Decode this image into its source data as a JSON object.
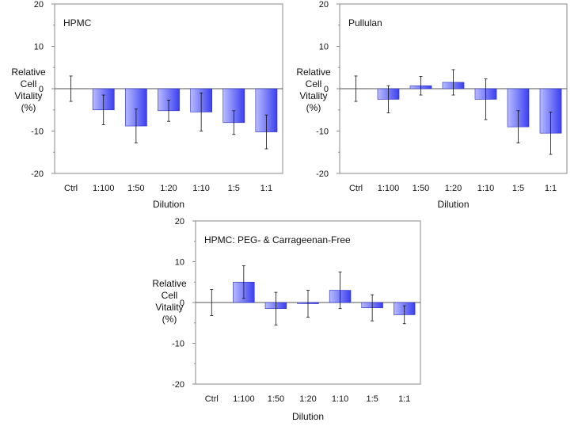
{
  "chart_data": [
    {
      "type": "bar",
      "title": "HPMC",
      "ylabel": [
        "Relative",
        "Cell",
        "Vitality",
        "(%)"
      ],
      "xlabel": "Dilution",
      "categories": [
        "Ctrl",
        "1:100",
        "1:50",
        "1:20",
        "1:10",
        "1:5",
        "1:1"
      ],
      "values": [
        0,
        -5,
        -8.8,
        -5.2,
        -5.5,
        -8,
        -10.2
      ],
      "errors": [
        3,
        3.5,
        4,
        2.5,
        4.5,
        2.8,
        4
      ],
      "yticks": [
        "20",
        "10",
        "0",
        "-10",
        "-20"
      ],
      "ylim": [
        -20,
        20
      ],
      "grid": false
    },
    {
      "type": "bar",
      "title": "Pullulan",
      "ylabel": [
        "Relative",
        "Cell",
        "Vitality",
        "(%)"
      ],
      "xlabel": "Dilution",
      "categories": [
        "Ctrl",
        "1:100",
        "1:50",
        "1:20",
        "1:10",
        "1:5",
        "1:1"
      ],
      "values": [
        0,
        -2.5,
        0.7,
        1.5,
        -2.5,
        -9,
        -10.5
      ],
      "errors": [
        3,
        3.2,
        2.2,
        3,
        4.8,
        3.8,
        5
      ],
      "yticks": [
        "20",
        "10",
        "0",
        "-10",
        "-20"
      ],
      "ylim": [
        -20,
        20
      ],
      "grid": false
    },
    {
      "type": "bar",
      "title": "HPMC: PEG- & Carrageenan-Free",
      "ylabel": [
        "Relative",
        "Cell",
        "Vitality",
        "(%)"
      ],
      "xlabel": "Dilution",
      "categories": [
        "Ctrl",
        "1:100",
        "1:50",
        "1:20",
        "1:10",
        "1:5",
        "1:1"
      ],
      "values": [
        0,
        5,
        -1.5,
        -0.3,
        3,
        -1.3,
        -3
      ],
      "errors": [
        3.2,
        4,
        4,
        3.3,
        4.5,
        3.2,
        2.2
      ],
      "yticks": [
        "20",
        "10",
        "0",
        "-10",
        "-20"
      ],
      "ylim": [
        -20,
        20
      ],
      "grid": false
    }
  ],
  "colors": {
    "bar_light": "#b8bcff",
    "bar_dark": "#3b3ff0",
    "axis": "#888888",
    "error": "#111111"
  }
}
